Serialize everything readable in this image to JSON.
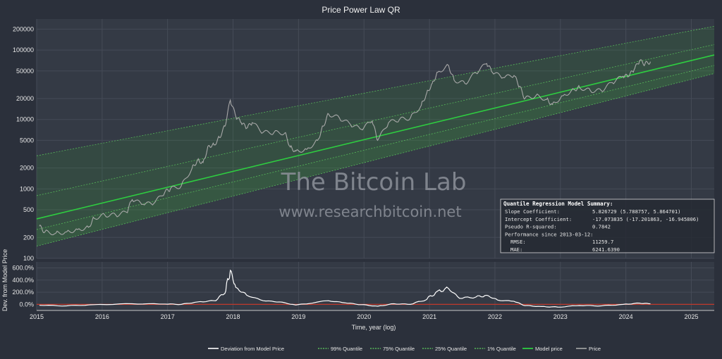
{
  "chart_data": {
    "type": "line",
    "title": "Price Power Law QR",
    "xlabel": "Time, year (log)",
    "ylabel": "",
    "y2label": "Dev. from Model Price",
    "yscale": "log",
    "ylim": [
      100,
      280000
    ],
    "y_ticks": [
      "200000",
      "100000",
      "50000",
      "20000",
      "10000",
      "5000",
      "2000",
      "1000",
      "500",
      "200",
      "100"
    ],
    "y2_ticks": [
      "600.0%",
      "400.0%",
      "200.0%",
      "0.0%"
    ],
    "x_ticks": [
      "2015",
      "2016",
      "2017",
      "2018",
      "2019",
      "2020",
      "2021",
      "2022",
      "2023",
      "2024",
      "2025"
    ],
    "watermark_title": "The Bitcoin Lab",
    "watermark_url": "www.researchbitcoin.net",
    "model": {
      "title": "Quantile Regression Model Summary:",
      "lines": [
        [
          "Slope Coefficient:",
          "5.826729 (5.788757, 5.864701)"
        ],
        [
          "Intercept Coefficient:",
          "-17.073835 (-17.201863, -16.945806)"
        ],
        [
          "Pseudo R-squared:",
          "0.7842"
        ],
        [
          "Performance since 2013-03-12:",
          ""
        ],
        [
          "RMSE:",
          "11259.7"
        ],
        [
          "MAE:",
          "6241.6390"
        ]
      ]
    },
    "bands": [
      {
        "name": "1% Quantile",
        "start": 150,
        "end": 46000
      },
      {
        "name": "25% Quantile",
        "start": 260,
        "end": 60000
      },
      {
        "name": "Model price",
        "start": 370,
        "end": 85000
      },
      {
        "name": "75% Quantile",
        "start": 800,
        "end": 120000
      },
      {
        "name": "99% Quantile",
        "start": 3000,
        "end": 220000
      }
    ],
    "price": [
      [
        "2015-01",
        290
      ],
      [
        "2015-02",
        240
      ],
      [
        "2015-04",
        230
      ],
      [
        "2015-06",
        240
      ],
      [
        "2015-08",
        260
      ],
      [
        "2015-10",
        280
      ],
      [
        "2015-11",
        380
      ],
      [
        "2016-01",
        420
      ],
      [
        "2016-03",
        420
      ],
      [
        "2016-05",
        460
      ],
      [
        "2016-06",
        700
      ],
      [
        "2016-08",
        600
      ],
      [
        "2016-10",
        620
      ],
      [
        "2016-12",
        900
      ],
      [
        "2017-01",
        1000
      ],
      [
        "2017-03",
        1100
      ],
      [
        "2017-05",
        2000
      ],
      [
        "2017-06",
        2600
      ],
      [
        "2017-07",
        2400
      ],
      [
        "2017-08",
        4200
      ],
      [
        "2017-09",
        4300
      ],
      [
        "2017-10",
        5500
      ],
      [
        "2017-11",
        8000
      ],
      [
        "2017-12",
        19000
      ],
      [
        "2018-01",
        11000
      ],
      [
        "2018-02",
        9000
      ],
      [
        "2018-03",
        7500
      ],
      [
        "2018-04",
        9000
      ],
      [
        "2018-06",
        6500
      ],
      [
        "2018-08",
        6500
      ],
      [
        "2018-10",
        6400
      ],
      [
        "2018-11",
        4000
      ],
      [
        "2018-12",
        3500
      ],
      [
        "2019-02",
        3700
      ],
      [
        "2019-04",
        5000
      ],
      [
        "2019-05",
        8000
      ],
      [
        "2019-06",
        12000
      ],
      [
        "2019-08",
        10500
      ],
      [
        "2019-10",
        8500
      ],
      [
        "2019-12",
        7200
      ],
      [
        "2020-02",
        9500
      ],
      [
        "2020-03",
        5000
      ],
      [
        "2020-05",
        9000
      ],
      [
        "2020-07",
        10000
      ],
      [
        "2020-09",
        10500
      ],
      [
        "2020-11",
        16000
      ],
      [
        "2020-12",
        24000
      ],
      [
        "2021-01",
        33000
      ],
      [
        "2021-02",
        48000
      ],
      [
        "2021-04",
        60000
      ],
      [
        "2021-05",
        37000
      ],
      [
        "2021-07",
        33000
      ],
      [
        "2021-09",
        47000
      ],
      [
        "2021-11",
        64000
      ],
      [
        "2021-12",
        48000
      ],
      [
        "2022-02",
        40000
      ],
      [
        "2022-04",
        43000
      ],
      [
        "2022-05",
        30000
      ],
      [
        "2022-06",
        20000
      ],
      [
        "2022-08",
        22000
      ],
      [
        "2022-10",
        19500
      ],
      [
        "2022-11",
        16500
      ],
      [
        "2023-01",
        22000
      ],
      [
        "2023-03",
        27000
      ],
      [
        "2023-04",
        29000
      ],
      [
        "2023-06",
        26000
      ],
      [
        "2023-08",
        26000
      ],
      [
        "2023-10",
        34000
      ],
      [
        "2023-12",
        42000
      ],
      [
        "2024-01",
        42000
      ],
      [
        "2024-02",
        52000
      ],
      [
        "2024-03",
        70000
      ],
      [
        "2024-04",
        63000
      ],
      [
        "2024-05",
        68000
      ]
    ],
    "deviation": [
      [
        "2015-01",
        -15
      ],
      [
        "2015-06",
        -25
      ],
      [
        "2015-11",
        -5
      ],
      [
        "2016-06",
        10
      ],
      [
        "2016-12",
        5
      ],
      [
        "2017-03",
        0
      ],
      [
        "2017-06",
        40
      ],
      [
        "2017-09",
        60
      ],
      [
        "2017-11",
        180
      ],
      [
        "2017-12",
        560
      ],
      [
        "2018-01",
        280
      ],
      [
        "2018-03",
        150
      ],
      [
        "2018-06",
        60
      ],
      [
        "2018-09",
        40
      ],
      [
        "2018-12",
        -10
      ],
      [
        "2019-06",
        60
      ],
      [
        "2019-09",
        25
      ],
      [
        "2019-12",
        -5
      ],
      [
        "2020-03",
        -30
      ],
      [
        "2020-06",
        10
      ],
      [
        "2020-09",
        0
      ],
      [
        "2020-12",
        80
      ],
      [
        "2021-02",
        220
      ],
      [
        "2021-04",
        260
      ],
      [
        "2021-06",
        100
      ],
      [
        "2021-09",
        120
      ],
      [
        "2021-11",
        150
      ],
      [
        "2022-01",
        70
      ],
      [
        "2022-04",
        50
      ],
      [
        "2022-06",
        -20
      ],
      [
        "2022-09",
        -35
      ],
      [
        "2022-12",
        -45
      ],
      [
        "2023-04",
        -20
      ],
      [
        "2023-08",
        -25
      ],
      [
        "2023-12",
        0
      ],
      [
        "2024-03",
        20
      ],
      [
        "2024-05",
        10
      ]
    ],
    "legend": [
      "Deviation from Model Price",
      "99% Quantile",
      "75% Quantile",
      "25% Quantile",
      "1% Quantile",
      "Model price",
      "Price"
    ],
    "legend_position": "bottom",
    "colors": {
      "background": "#2b303b",
      "model": "#2ecc40",
      "band_fill": "#3a9a3a",
      "price": "#a8a8a8",
      "deviation": "#ffffff",
      "zero_line": "#c0392b"
    }
  }
}
